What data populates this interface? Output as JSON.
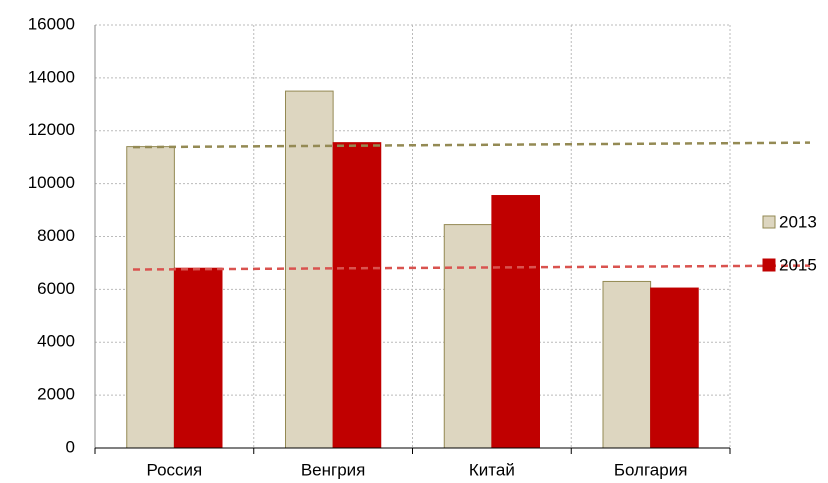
{
  "chart_data": {
    "type": "bar",
    "categories": [
      "Россия",
      "Венгрия",
      "Китай",
      "Болгария"
    ],
    "series": [
      {
        "name": "2013",
        "color": "#ddd6c0",
        "edge": "#938953",
        "values": [
          11400,
          13500,
          8450,
          6300
        ],
        "trend_color": "#948a54",
        "trend": [
          11380,
          11550
        ]
      },
      {
        "name": "2015",
        "color": "#c00000",
        "edge": "#c00000",
        "values": [
          6800,
          11550,
          9550,
          6050
        ],
        "trend_color": "#d9534f",
        "trend": [
          6750,
          6900
        ]
      }
    ],
    "ylim": [
      0,
      16000
    ],
    "yticks": [
      0,
      2000,
      4000,
      6000,
      8000,
      10000,
      12000,
      14000,
      16000
    ],
    "grid": true,
    "legend": "right"
  }
}
